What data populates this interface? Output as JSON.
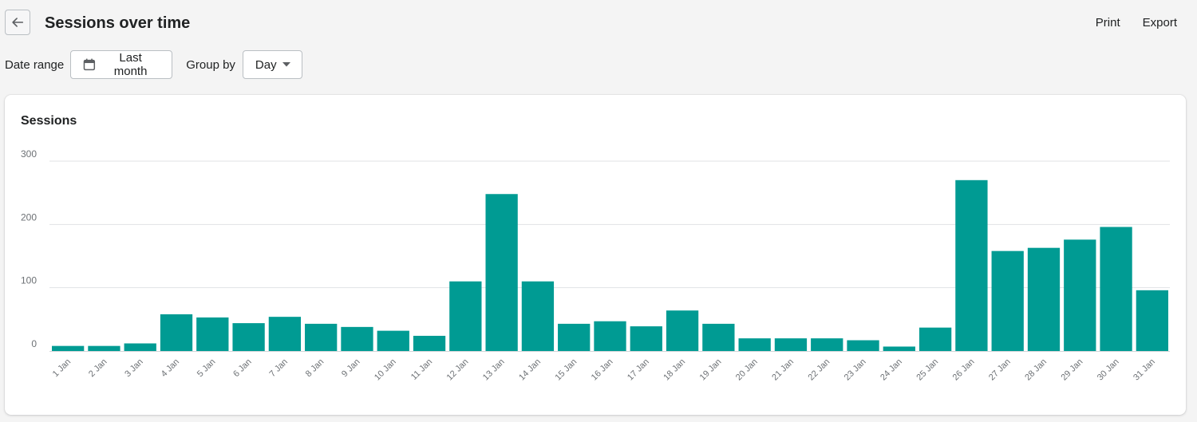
{
  "header": {
    "title": "Sessions over time",
    "actions": [
      "Print",
      "Export"
    ]
  },
  "filters": {
    "date_range_label": "Date range",
    "date_range_value": "Last month",
    "group_by_label": "Group by",
    "group_by_value": "Day"
  },
  "card": {
    "title": "Sessions"
  },
  "colors": {
    "bar": "#009b93",
    "grid": "#e1e3e5",
    "axis": "#d2d5d8"
  },
  "icons": {
    "back": "arrow-left-icon",
    "calendar": "calendar-icon",
    "dropdown": "caret-down-icon"
  },
  "chart_data": {
    "type": "bar",
    "title": "Sessions",
    "xlabel": "",
    "ylabel": "",
    "ylim": [
      0,
      300
    ],
    "yticks": [
      0,
      100,
      200,
      300
    ],
    "grid": true,
    "categories": [
      "1 Jan",
      "2 Jan",
      "3 Jan",
      "4 Jan",
      "5 Jan",
      "6 Jan",
      "7 Jan",
      "8 Jan",
      "9 Jan",
      "10 Jan",
      "11 Jan",
      "12 Jan",
      "13 Jan",
      "14 Jan",
      "15 Jan",
      "16 Jan",
      "17 Jan",
      "18 Jan",
      "19 Jan",
      "20 Jan",
      "21 Jan",
      "22 Jan",
      "23 Jan",
      "24 Jan",
      "25 Jan",
      "26 Jan",
      "27 Jan",
      "28 Jan",
      "29 Jan",
      "30 Jan",
      "31 Jan"
    ],
    "values": [
      8,
      8,
      12,
      58,
      53,
      44,
      54,
      43,
      38,
      32,
      24,
      110,
      248,
      110,
      43,
      47,
      39,
      64,
      43,
      20,
      20,
      20,
      17,
      7,
      37,
      270,
      158,
      163,
      176,
      196,
      96
    ]
  }
}
